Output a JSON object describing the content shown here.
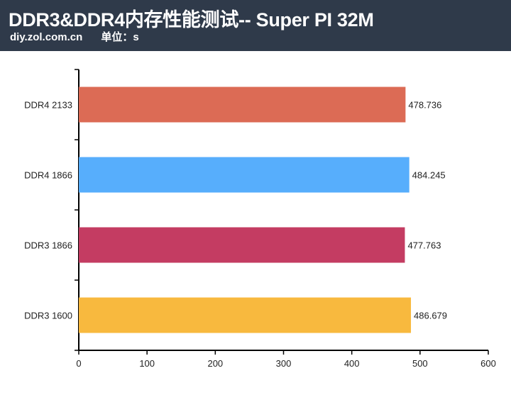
{
  "header": {
    "title": "DDR3&DDR4内存性能测试-- Super PI 32M",
    "source": "diy.zol.com.cn",
    "unit": "单位：s"
  },
  "chart_data": {
    "type": "bar",
    "orientation": "horizontal",
    "title": "DDR3&DDR4内存性能测试-- Super PI 32M",
    "xlabel": "",
    "ylabel": "",
    "categories": [
      "DDR4 2133",
      "DDR4 1866",
      "DDR3 1866",
      "DDR3 1600"
    ],
    "values": [
      478.736,
      484.245,
      477.763,
      486.679
    ],
    "value_labels": [
      "478.736",
      "484.245",
      "477.763",
      "486.679"
    ],
    "colors": [
      "#dc6b55",
      "#57aefc",
      "#c43c62",
      "#f8b93e"
    ],
    "xlim": [
      0,
      600
    ],
    "xticks": [
      0,
      100,
      200,
      300,
      400,
      500,
      600
    ],
    "grid": false,
    "legend": "none"
  }
}
